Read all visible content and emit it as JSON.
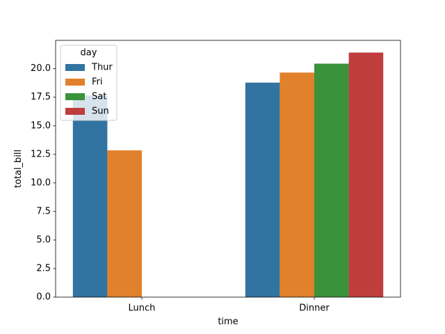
{
  "chart_data": {
    "type": "bar",
    "categories": [
      "Lunch",
      "Dinner"
    ],
    "series": [
      {
        "name": "Thur",
        "color": "#3274a1",
        "values": [
          17.66,
          18.78
        ]
      },
      {
        "name": "Fri",
        "color": "#e1812c",
        "values": [
          12.85,
          19.66
        ]
      },
      {
        "name": "Sat",
        "color": "#3a923a",
        "values": [
          null,
          20.44
        ]
      },
      {
        "name": "Sun",
        "color": "#c03d3e",
        "values": [
          null,
          21.41
        ]
      }
    ],
    "xlabel": "time",
    "ylabel": "total_bill",
    "ylim": [
      0,
      22.48
    ],
    "yticks": [
      0.0,
      2.5,
      5.0,
      7.5,
      10.0,
      12.5,
      15.0,
      17.5,
      20.0
    ],
    "ytick_labels": [
      "0.0",
      "2.5",
      "5.0",
      "7.5",
      "10.0",
      "12.5",
      "15.0",
      "17.5",
      "20.0"
    ],
    "legend": {
      "title": "day",
      "placement": "top-left"
    },
    "grid": false
  }
}
